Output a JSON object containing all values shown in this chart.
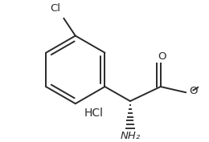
{
  "bg_color": "#ffffff",
  "line_color": "#2a2a2a",
  "text_color": "#2a2a2a",
  "figsize": [
    2.6,
    1.77
  ],
  "dpi": 100,
  "hcl_label": "HCl",
  "cl_label": "Cl",
  "o_carbonyl_label": "O",
  "o_ester_label": "O",
  "nh2_label": "NH₂",
  "lw": 1.4,
  "font_size": 9.5
}
